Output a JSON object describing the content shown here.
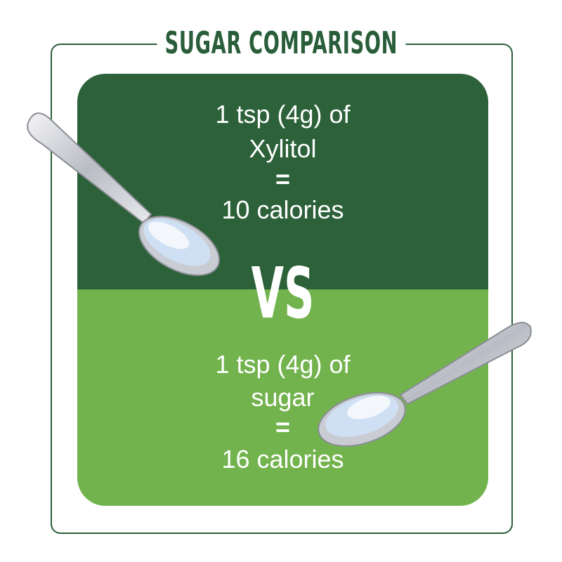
{
  "title": "SUGAR COMPARISON",
  "top": {
    "lines": [
      "1 tsp (4g) of",
      "Xylitol",
      "=",
      "10 calories"
    ]
  },
  "vs": "VS",
  "bottom": {
    "lines": [
      "1 tsp (4g) of",
      "sugar",
      "=",
      "16 calories"
    ]
  },
  "colors": {
    "dark_green": "#2c6139",
    "light_green": "#72b34e",
    "title_green": "#2a5e3a"
  },
  "icons": [
    "spoon-icon",
    "spoon-icon"
  ]
}
